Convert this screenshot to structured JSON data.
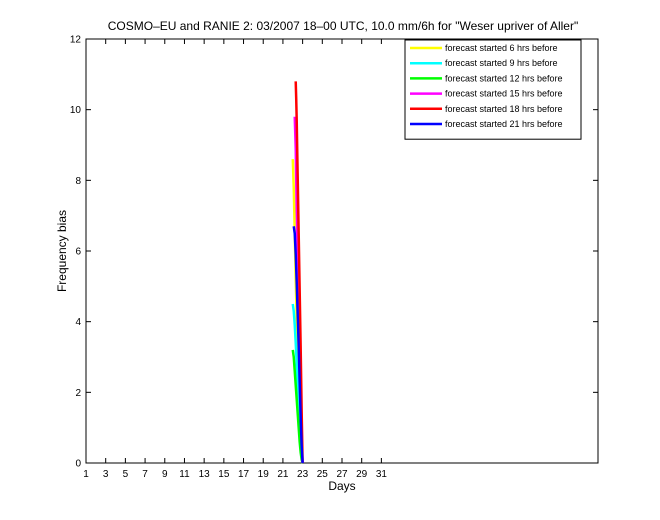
{
  "chart_data": {
    "type": "line",
    "title": "COSMO–EU and RANIE 2: 03/2007 18–00 UTC, 10.0 mm/6h for \"Weser upriver of Aller\"",
    "xlabel": "Days",
    "ylabel": "Frequency bias",
    "xlim": [
      1,
      53
    ],
    "ylim": [
      0,
      12
    ],
    "xticks": [
      1,
      3,
      5,
      7,
      9,
      11,
      13,
      15,
      17,
      19,
      21,
      23,
      25,
      27,
      29,
      31
    ],
    "yticks": [
      0,
      2,
      4,
      6,
      8,
      10,
      12
    ],
    "grid": false,
    "legend_position": "top-right",
    "series": [
      {
        "name": "forecast started 6 hrs before",
        "color": "#ffff00",
        "x": [
          22.0,
          22.1,
          22.2,
          22.3,
          22.4,
          22.5,
          22.6,
          22.7,
          22.8,
          22.9,
          23.0
        ],
        "y": [
          8.6,
          7.8,
          6.5,
          5.2,
          4.1,
          3.2,
          2.3,
          1.5,
          0.8,
          0.3,
          0.0
        ]
      },
      {
        "name": "forecast started 9 hrs before",
        "color": "#00ffff",
        "x": [
          22.0,
          22.1,
          22.2,
          22.3,
          22.4,
          22.5,
          22.6,
          22.7,
          22.8,
          22.9,
          23.0
        ],
        "y": [
          4.5,
          4.3,
          3.9,
          3.4,
          2.8,
          2.2,
          1.7,
          1.1,
          0.6,
          0.2,
          0.0
        ]
      },
      {
        "name": "forecast started 12 hrs before",
        "color": "#00ff00",
        "x": [
          22.0,
          22.1,
          22.2,
          22.3,
          22.4,
          22.5,
          22.6,
          22.7,
          22.8,
          22.9,
          23.0
        ],
        "y": [
          3.2,
          3.0,
          2.6,
          2.2,
          1.8,
          1.4,
          1.0,
          0.6,
          0.3,
          0.1,
          0.0
        ]
      },
      {
        "name": "forecast started 15 hrs before",
        "color": "#ff00ff",
        "x": [
          22.2,
          22.3,
          22.4,
          22.5,
          22.6,
          22.7,
          22.8,
          22.9,
          23.0
        ],
        "y": [
          9.8,
          8.9,
          7.2,
          5.8,
          4.4,
          3.1,
          1.8,
          0.7,
          0.0
        ]
      },
      {
        "name": "forecast started 18 hrs before",
        "color": "#ff0000",
        "x": [
          22.3,
          22.35,
          22.4,
          22.5,
          22.6,
          22.7,
          22.8,
          22.9,
          23.0
        ],
        "y": [
          10.8,
          10.3,
          9.7,
          8.1,
          6.5,
          4.9,
          3.3,
          1.5,
          0.0
        ]
      },
      {
        "name": "forecast started 21 hrs before",
        "color": "#0000ff",
        "x": [
          22.1,
          22.2,
          22.3,
          22.4,
          22.5,
          22.6,
          22.7,
          22.8,
          22.9,
          23.0
        ],
        "y": [
          6.7,
          6.5,
          5.9,
          5.1,
          4.2,
          3.3,
          2.3,
          1.3,
          0.5,
          0.0
        ]
      }
    ]
  }
}
